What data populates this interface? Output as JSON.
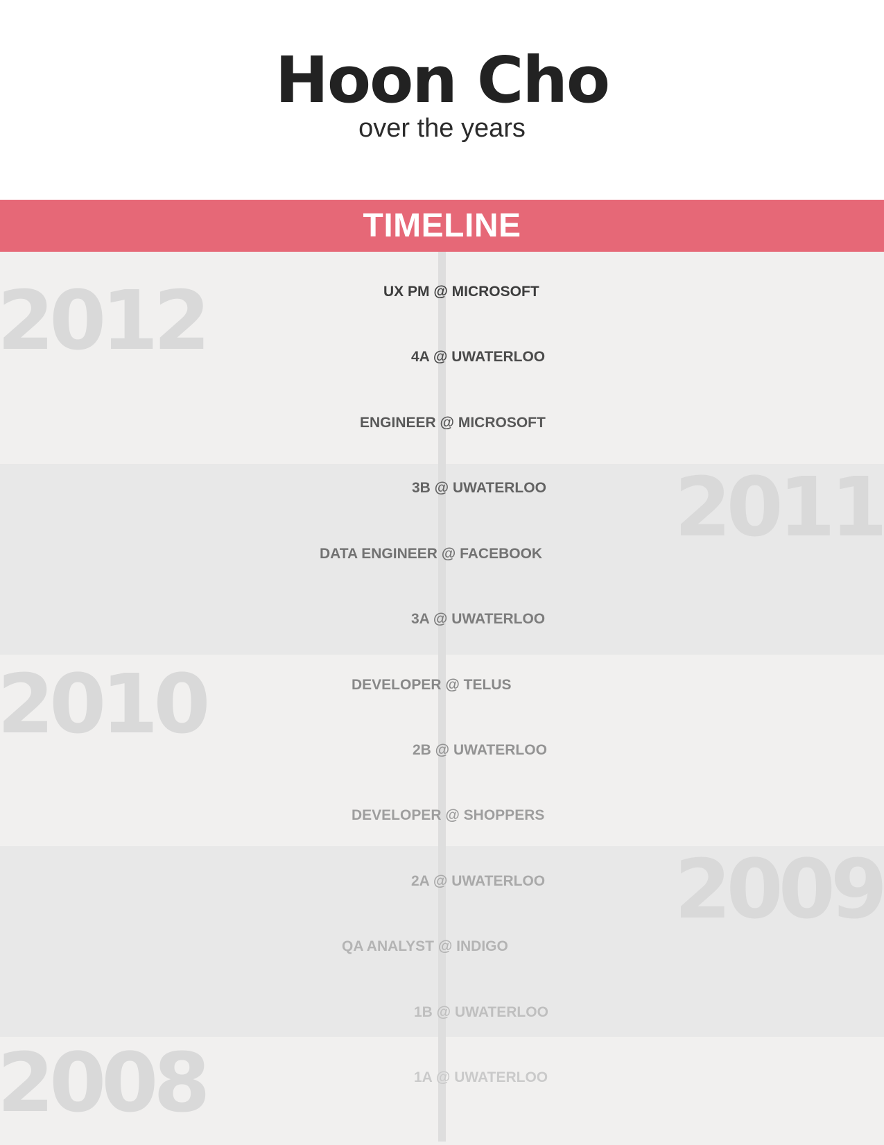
{
  "header": {
    "name": "Hoon Cho",
    "subtitle": "over the years"
  },
  "banner": {
    "title": "TIMELINE"
  },
  "years": [
    "2012",
    "2011",
    "2010",
    "2009",
    "2008"
  ],
  "entries": [
    {
      "label": "UX PM @ MICROSOFT",
      "color": "#3d3d3d"
    },
    {
      "label": "4A @ UWATERLOO",
      "color": "#4a4a4a"
    },
    {
      "label": "ENGINEER @ MICROSOFT",
      "color": "#585858"
    },
    {
      "label": "3B @ UWATERLOO",
      "color": "#636363"
    },
    {
      "label": "DATA ENGINEER @ FACEBOOK",
      "color": "#727272"
    },
    {
      "label": "3A @ UWATERLOO",
      "color": "#7c7c7c"
    },
    {
      "label": "DEVELOPER @ TELUS",
      "color": "#888888"
    },
    {
      "label": "2B @ UWATERLOO",
      "color": "#939393"
    },
    {
      "label": "DEVELOPER @ SHOPPERS",
      "color": "#9e9e9e"
    },
    {
      "label": "2A @ UWATERLOO",
      "color": "#a9a9a9"
    },
    {
      "label": "QA ANALYST @ INDIGO",
      "color": "#b4b4b4"
    },
    {
      "label": "1B @ UWATERLOO",
      "color": "#bfbfbf"
    },
    {
      "label": "1A @ UWATERLOO",
      "color": "#cacaca"
    }
  ],
  "colors": {
    "accent": "#e66877",
    "band_light": "#f1f0ef",
    "band_dark": "#e8e8e8",
    "year_watermark": "#d9d9d9"
  }
}
